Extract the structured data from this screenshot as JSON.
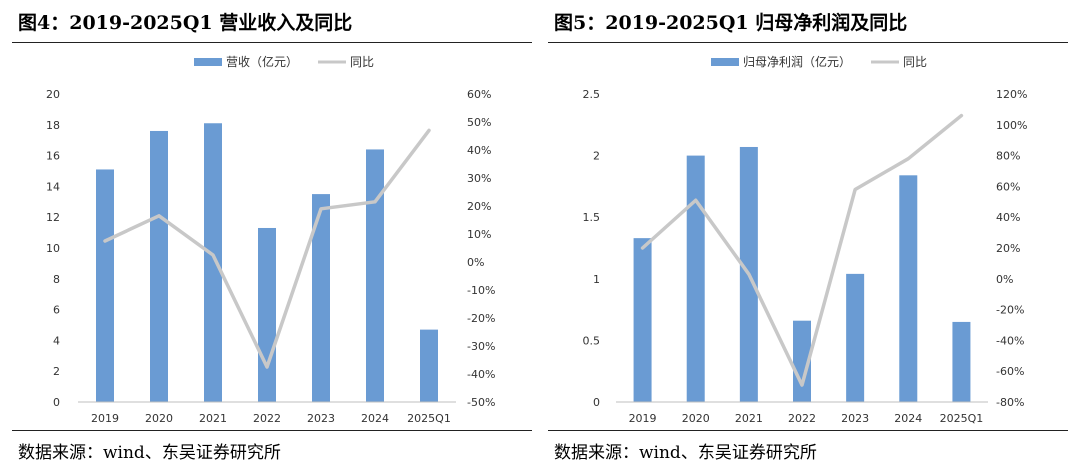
{
  "figures": [
    {
      "title": "图4：2019-2025Q1 营业收入及同比",
      "source": "数据来源：wind、东吴证券研究所"
    },
    {
      "title": "图5：2019-2025Q1 归母净利润及同比",
      "source": "数据来源：wind、东吴证券研究所"
    }
  ],
  "chart_data": [
    {
      "type": "bar",
      "categories": [
        "2019",
        "2020",
        "2021",
        "2022",
        "2023",
        "2024",
        "2025Q1"
      ],
      "series": [
        {
          "name": "营收（亿元）",
          "type": "bar",
          "axis": "left",
          "color": "#6a9bd3",
          "values": [
            15.1,
            17.6,
            18.1,
            11.3,
            13.5,
            16.4,
            4.7
          ]
        },
        {
          "name": "同比",
          "type": "line",
          "axis": "right",
          "color": "#c8c8c8",
          "values": [
            7.5,
            16.5,
            2.5,
            -37.5,
            19.0,
            21.5,
            47.0
          ]
        }
      ],
      "y_left": {
        "min": 0,
        "max": 20,
        "step": 2,
        "ticks": [
          "0",
          "2",
          "4",
          "6",
          "8",
          "10",
          "12",
          "14",
          "16",
          "18",
          "20"
        ]
      },
      "y_right": {
        "min": -50,
        "max": 60,
        "step": 10,
        "ticks": [
          "-50%",
          "-40%",
          "-30%",
          "-20%",
          "-10%",
          "0%",
          "10%",
          "20%",
          "30%",
          "40%",
          "50%",
          "60%"
        ]
      },
      "legend_position": "top-center",
      "grid": false
    },
    {
      "type": "bar",
      "categories": [
        "2019",
        "2020",
        "2021",
        "2022",
        "2023",
        "2024",
        "2025Q1"
      ],
      "series": [
        {
          "name": "归母净利润（亿元）",
          "type": "bar",
          "axis": "left",
          "color": "#6a9bd3",
          "values": [
            1.33,
            2.0,
            2.07,
            0.66,
            1.04,
            1.84,
            0.65
          ]
        },
        {
          "name": "同比",
          "type": "line",
          "axis": "right",
          "color": "#c8c8c8",
          "values": [
            20,
            51,
            3,
            -69,
            58,
            78,
            106
          ]
        }
      ],
      "y_left": {
        "min": 0,
        "max": 2.5,
        "step": 0.5,
        "ticks": [
          "0",
          "0.5",
          "1",
          "1.5",
          "2",
          "2.5"
        ]
      },
      "y_right": {
        "min": -80,
        "max": 120,
        "step": 20,
        "ticks": [
          "-80%",
          "-60%",
          "-40%",
          "-20%",
          "0%",
          "20%",
          "40%",
          "60%",
          "80%",
          "100%",
          "120%"
        ]
      },
      "legend_position": "top-center",
      "grid": false
    }
  ]
}
